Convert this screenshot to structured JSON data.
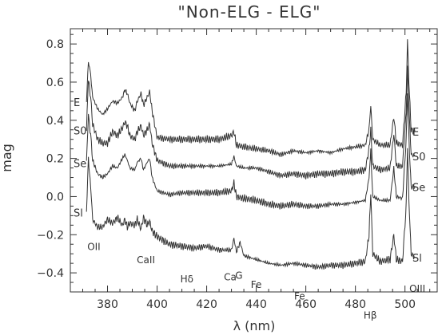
{
  "chart_data": {
    "type": "line",
    "title": "\"Non-ELG - ELG\"",
    "xlabel": "λ (nm)",
    "ylabel": "mag",
    "xlim": [
      365,
      513
    ],
    "ylim": [
      -0.5,
      0.88
    ],
    "xticks": [
      380,
      400,
      420,
      440,
      460,
      480,
      500
    ],
    "yticks": [
      -0.4,
      -0.2,
      0.0,
      0.2,
      0.4,
      0.6,
      0.8
    ],
    "ytick_labels": [
      "−0.4",
      "−0.2",
      "0.0",
      "0.2",
      "0.4",
      "0.6",
      "0.8"
    ],
    "grid": false,
    "line_color": "#333333",
    "series": [
      {
        "name": "E",
        "points": [
          [
            371.5,
            0.5
          ],
          [
            372.3,
            0.71
          ],
          [
            373.2,
            0.64
          ],
          [
            374.0,
            0.52
          ],
          [
            376,
            0.46
          ],
          [
            378,
            0.43
          ],
          [
            380,
            0.46
          ],
          [
            382,
            0.5
          ],
          [
            384,
            0.49
          ],
          [
            386,
            0.52
          ],
          [
            387,
            0.56
          ],
          [
            388,
            0.54
          ],
          [
            389,
            0.49
          ],
          [
            391,
            0.45
          ],
          [
            392,
            0.5
          ],
          [
            393.5,
            0.54
          ],
          [
            394.5,
            0.48
          ],
          [
            396,
            0.52
          ],
          [
            397,
            0.55
          ],
          [
            398,
            0.45
          ],
          [
            400,
            0.31
          ],
          [
            405,
            0.3
          ],
          [
            410,
            0.3
          ],
          [
            415,
            0.3
          ],
          [
            420,
            0.3
          ],
          [
            425,
            0.3
          ],
          [
            430,
            0.32
          ],
          [
            431,
            0.34
          ],
          [
            432,
            0.27
          ],
          [
            435,
            0.26
          ],
          [
            440,
            0.25
          ],
          [
            445,
            0.24
          ],
          [
            450,
            0.22
          ],
          [
            455,
            0.24
          ],
          [
            460,
            0.23
          ],
          [
            465,
            0.24
          ],
          [
            470,
            0.23
          ],
          [
            475,
            0.25
          ],
          [
            480,
            0.26
          ],
          [
            484,
            0.27
          ],
          [
            485.5,
            0.35
          ],
          [
            486.2,
            0.48
          ],
          [
            487,
            0.3
          ],
          [
            490,
            0.27
          ],
          [
            494,
            0.27
          ],
          [
            495.5,
            0.42
          ],
          [
            496.5,
            0.28
          ],
          [
            499,
            0.27
          ],
          [
            500.5,
            0.55
          ],
          [
            501,
            0.81
          ],
          [
            501.6,
            0.6
          ],
          [
            502.5,
            0.35
          ],
          [
            504,
            0.34
          ]
        ],
        "label_left": "E",
        "label_right": "E"
      },
      {
        "name": "S0",
        "points": [
          [
            371.5,
            0.35
          ],
          [
            372.3,
            0.62
          ],
          [
            373.2,
            0.52
          ],
          [
            374.0,
            0.38
          ],
          [
            376,
            0.3
          ],
          [
            378,
            0.28
          ],
          [
            380,
            0.28
          ],
          [
            382,
            0.34
          ],
          [
            384,
            0.32
          ],
          [
            386,
            0.36
          ],
          [
            387,
            0.39
          ],
          [
            388,
            0.37
          ],
          [
            389,
            0.32
          ],
          [
            391,
            0.3
          ],
          [
            392,
            0.34
          ],
          [
            393.5,
            0.37
          ],
          [
            394.5,
            0.32
          ],
          [
            396,
            0.35
          ],
          [
            397,
            0.38
          ],
          [
            398,
            0.28
          ],
          [
            400,
            0.19
          ],
          [
            405,
            0.16
          ],
          [
            410,
            0.16
          ],
          [
            415,
            0.16
          ],
          [
            420,
            0.16
          ],
          [
            425,
            0.16
          ],
          [
            430,
            0.17
          ],
          [
            431,
            0.21
          ],
          [
            432,
            0.16
          ],
          [
            435,
            0.15
          ],
          [
            440,
            0.15
          ],
          [
            445,
            0.13
          ],
          [
            450,
            0.11
          ],
          [
            455,
            0.12
          ],
          [
            460,
            0.11
          ],
          [
            465,
            0.12
          ],
          [
            470,
            0.12
          ],
          [
            475,
            0.13
          ],
          [
            480,
            0.13
          ],
          [
            484,
            0.14
          ],
          [
            485.5,
            0.25
          ],
          [
            486.2,
            0.35
          ],
          [
            487,
            0.16
          ],
          [
            490,
            0.14
          ],
          [
            494,
            0.15
          ],
          [
            495.5,
            0.33
          ],
          [
            496.5,
            0.16
          ],
          [
            499,
            0.16
          ],
          [
            500.5,
            0.45
          ],
          [
            501,
            0.67
          ],
          [
            501.6,
            0.47
          ],
          [
            502.5,
            0.22
          ],
          [
            504,
            0.21
          ]
        ],
        "label_left": "S0",
        "label_right": "S0"
      },
      {
        "name": "Se",
        "points": [
          [
            371.5,
            0.18
          ],
          [
            372.3,
            0.43
          ],
          [
            373.2,
            0.32
          ],
          [
            374.0,
            0.19
          ],
          [
            376,
            0.12
          ],
          [
            378,
            0.1
          ],
          [
            380,
            0.12
          ],
          [
            382,
            0.16
          ],
          [
            384,
            0.15
          ],
          [
            386,
            0.2
          ],
          [
            387,
            0.22
          ],
          [
            388,
            0.19
          ],
          [
            389,
            0.15
          ],
          [
            391,
            0.14
          ],
          [
            392,
            0.18
          ],
          [
            393.5,
            0.2
          ],
          [
            394.5,
            0.14
          ],
          [
            396,
            0.18
          ],
          [
            397,
            0.2
          ],
          [
            398,
            0.1
          ],
          [
            400,
            0.03
          ],
          [
            405,
            0.01
          ],
          [
            410,
            0.02
          ],
          [
            415,
            0.02
          ],
          [
            420,
            0.02
          ],
          [
            425,
            0.02
          ],
          [
            430,
            0.03
          ],
          [
            431,
            0.07
          ],
          [
            432,
            0.0
          ],
          [
            435,
            -0.01
          ],
          [
            440,
            -0.02
          ],
          [
            445,
            -0.04
          ],
          [
            450,
            -0.05
          ],
          [
            455,
            -0.04
          ],
          [
            460,
            -0.05
          ],
          [
            465,
            -0.05
          ],
          [
            470,
            -0.04
          ],
          [
            475,
            -0.04
          ],
          [
            480,
            -0.03
          ],
          [
            484,
            -0.02
          ],
          [
            485.5,
            0.1
          ],
          [
            486.2,
            0.24
          ],
          [
            487,
            0.0
          ],
          [
            490,
            -0.02
          ],
          [
            494,
            -0.02
          ],
          [
            495.5,
            0.15
          ],
          [
            496.5,
            0.0
          ],
          [
            499,
            -0.01
          ],
          [
            500.5,
            0.3
          ],
          [
            501,
            0.55
          ],
          [
            501.6,
            0.3
          ],
          [
            502.5,
            0.05
          ],
          [
            504,
            0.05
          ]
        ],
        "label_left": "Se",
        "label_right": "Se"
      },
      {
        "name": "Sl",
        "points": [
          [
            371.5,
            -0.08
          ],
          [
            372.3,
            0.2
          ],
          [
            373.2,
            0.05
          ],
          [
            374.0,
            -0.12
          ],
          [
            376,
            -0.16
          ],
          [
            378,
            -0.16
          ],
          [
            380,
            -0.12
          ],
          [
            382,
            -0.14
          ],
          [
            384,
            -0.11
          ],
          [
            386,
            -0.15
          ],
          [
            387,
            -0.12
          ],
          [
            388,
            -0.16
          ],
          [
            389,
            -0.14
          ],
          [
            391,
            -0.15
          ],
          [
            392,
            -0.12
          ],
          [
            393.5,
            -0.17
          ],
          [
            394.5,
            -0.11
          ],
          [
            396,
            -0.15
          ],
          [
            397,
            -0.13
          ],
          [
            398,
            -0.18
          ],
          [
            400,
            -0.21
          ],
          [
            405,
            -0.25
          ],
          [
            410,
            -0.26
          ],
          [
            415,
            -0.27
          ],
          [
            420,
            -0.26
          ],
          [
            425,
            -0.28
          ],
          [
            430,
            -0.28
          ],
          [
            431,
            -0.22
          ],
          [
            432,
            -0.29
          ],
          [
            433.5,
            -0.24
          ],
          [
            435,
            -0.31
          ],
          [
            440,
            -0.33
          ],
          [
            445,
            -0.35
          ],
          [
            450,
            -0.36
          ],
          [
            455,
            -0.35
          ],
          [
            460,
            -0.36
          ],
          [
            465,
            -0.37
          ],
          [
            470,
            -0.36
          ],
          [
            475,
            -0.36
          ],
          [
            480,
            -0.35
          ],
          [
            484,
            -0.34
          ],
          [
            485.5,
            -0.2
          ],
          [
            486.2,
            0.02
          ],
          [
            487,
            -0.3
          ],
          [
            490,
            -0.34
          ],
          [
            494,
            -0.33
          ],
          [
            495.5,
            -0.2
          ],
          [
            496.5,
            -0.33
          ],
          [
            499,
            -0.34
          ],
          [
            500.5,
            -0.05
          ],
          [
            501,
            0.27
          ],
          [
            501.6,
            -0.02
          ],
          [
            502.5,
            -0.3
          ],
          [
            504,
            -0.32
          ]
        ],
        "label_left": "Sl",
        "label_right": "Sl"
      }
    ],
    "annotations": [
      {
        "text": "OII",
        "x": 374.5,
        "y": -0.28
      },
      {
        "text": "CaII",
        "x": 395.5,
        "y": -0.35
      },
      {
        "text": "Hδ",
        "x": 412,
        "y": -0.45
      },
      {
        "text": "Ca",
        "x": 429.5,
        "y": -0.44
      },
      {
        "text": "G",
        "x": 433,
        "y": -0.43
      },
      {
        "text": "Fe",
        "x": 440,
        "y": -0.48
      },
      {
        "text": "Fe",
        "x": 457.5,
        "y": -0.54
      },
      {
        "text": "Hβ",
        "x": 486,
        "y": -0.64
      },
      {
        "text": "OIII",
        "x": 505,
        "y": -0.5
      }
    ]
  }
}
